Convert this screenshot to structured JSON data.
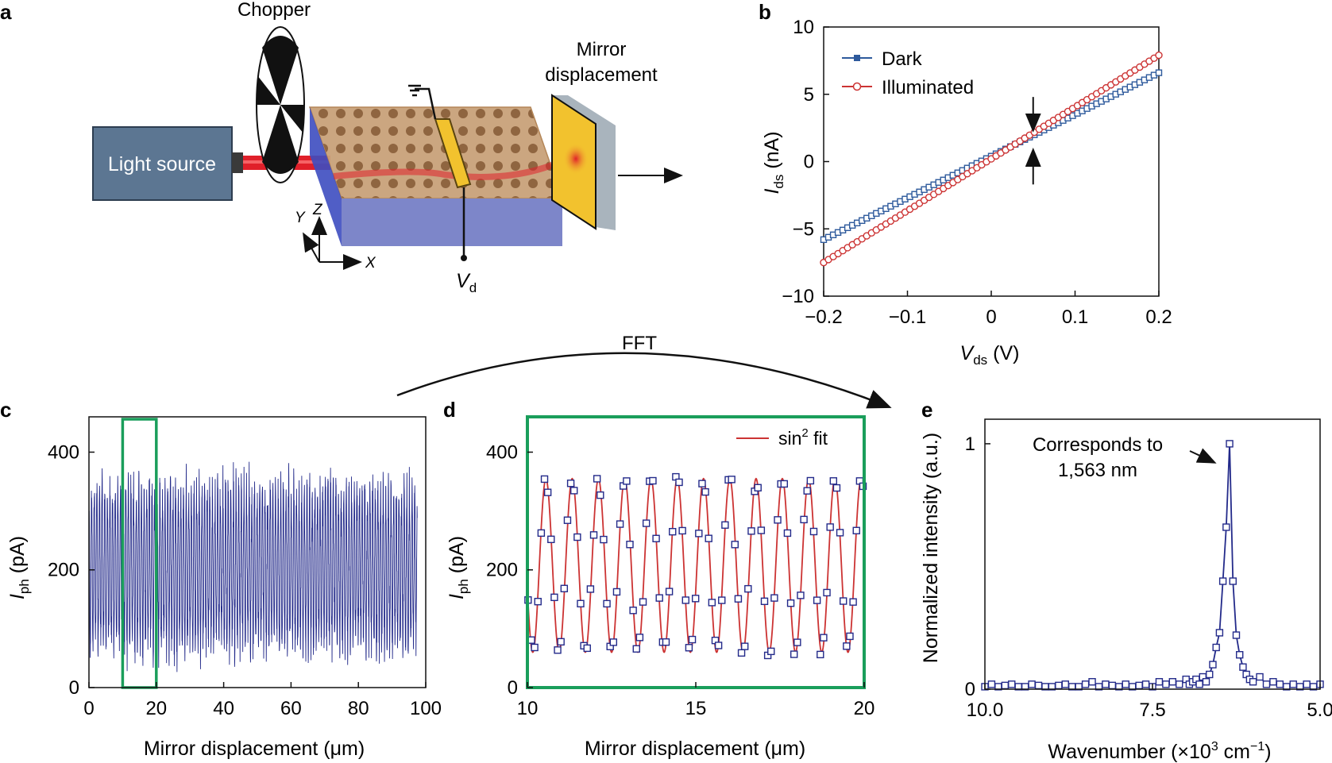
{
  "colors": {
    "dark": "#2e5a9c",
    "illuminated": "#cc3333",
    "trace": "#232a8a",
    "fit": "#cc3333",
    "green_box": "#1a9e5b",
    "light_source": "#5c7692",
    "substrate": "#7d86c9",
    "detector": "#f2c22e",
    "mirror": "#f2c22e"
  },
  "panels": {
    "a": {
      "label": "a",
      "chopper": "Chopper",
      "light_source": "Light source",
      "mirror_line1": "Mirror",
      "mirror_line2": "displacement",
      "axis_y": "Y",
      "axis_z": "Z",
      "axis_x": "X",
      "vd_main": "V",
      "vd_sub": "d"
    },
    "b": {
      "label": "b",
      "arrow_note": ""
    },
    "c": {
      "label": "c"
    },
    "d": {
      "label": "d",
      "fit_label_main": "sin",
      "fit_label_sup": "2",
      "fit_label_rest": " fit"
    },
    "e": {
      "label": "e",
      "annotation_line1": "Corresponds to",
      "annotation_line2": "1,563 nm"
    },
    "fft_label": "FFT"
  },
  "chart_data": [
    {
      "panel": "b",
      "type": "scatter",
      "xlabel_main": "V",
      "xlabel_sub": "ds",
      "xlabel_unit": " (V)",
      "ylabel_main": "I",
      "ylabel_sub": "ds",
      "ylabel_unit": " (nA)",
      "xlim": [
        -0.2,
        0.2
      ],
      "ylim": [
        -10,
        10
      ],
      "xticks": [
        -0.2,
        -0.1,
        0,
        0.1,
        0.2
      ],
      "xtick_labels": [
        "−0.2",
        "−0.1",
        "0",
        "0.1",
        "0.2"
      ],
      "yticks": [
        -10,
        -5,
        0,
        5,
        10
      ],
      "ytick_labels": [
        "−10",
        "−5",
        "0",
        "5",
        "10"
      ],
      "legend": "top-left",
      "series": [
        {
          "name": "Dark",
          "marker": "square",
          "x_range": [
            -0.2,
            0.2
          ],
          "y_at_xmin": -5.8,
          "y_at_xmax": 6.6
        },
        {
          "name": "Illuminated",
          "marker": "circle",
          "x_range": [
            -0.2,
            0.2
          ],
          "y_at_xmin": -7.5,
          "y_at_xmax": 7.9
        }
      ],
      "annotation_x": 0.05
    },
    {
      "panel": "c",
      "type": "line",
      "xlabel": "Mirror displacement (μm)",
      "ylabel_main": "I",
      "ylabel_sub": "ph",
      "ylabel_unit": " (pA)",
      "xlim": [
        0,
        100
      ],
      "ylim": [
        0,
        460
      ],
      "xticks": [
        0,
        20,
        40,
        60,
        80,
        100
      ],
      "xtick_labels": [
        "0",
        "20",
        "40",
        "60",
        "80",
        "100"
      ],
      "yticks": [
        0,
        200,
        400
      ],
      "ytick_labels": [
        "0",
        "200",
        "400"
      ],
      "x_range": [
        0,
        97.5
      ],
      "mean": 205,
      "amplitude": 140,
      "period": 0.78,
      "highlight_x": [
        10,
        20
      ]
    },
    {
      "panel": "d",
      "type": "scatter",
      "xlabel": "Mirror displacement (μm)",
      "ylabel_main": "I",
      "ylabel_sub": "ph",
      "ylabel_unit": " (pA)",
      "xlim": [
        10,
        20
      ],
      "ylim": [
        0,
        460
      ],
      "xticks": [
        10,
        15,
        20
      ],
      "xtick_labels": [
        "10",
        "15",
        "20"
      ],
      "yticks": [
        0,
        200,
        400
      ],
      "ytick_labels": [
        "0",
        "200",
        "400"
      ],
      "legend": "top-right",
      "fit": {
        "name": "sin² fit",
        "min": 60,
        "max": 355,
        "period": 0.78,
        "phase_x": 10.55
      }
    },
    {
      "panel": "e",
      "type": "line",
      "xlabel_main": "Wavenumber (×10",
      "xlabel_sup1": "3",
      "xlabel_mid": " cm",
      "xlabel_sup2": "−1",
      "xlabel_end": ")",
      "ylabel": "Normalized intensity (a.u.)",
      "xlim": [
        10.0,
        5.0
      ],
      "ylim": [
        0,
        1.1
      ],
      "xticks": [
        10.0,
        7.5,
        5.0
      ],
      "xtick_labels": [
        "10.0",
        "7.5",
        "5.0"
      ],
      "yticks": [
        0,
        1
      ],
      "ytick_labels": [
        "0",
        "1"
      ],
      "x": [
        10.0,
        9.9,
        9.8,
        9.7,
        9.6,
        9.5,
        9.4,
        9.3,
        9.2,
        9.1,
        9.0,
        8.9,
        8.8,
        8.7,
        8.6,
        8.5,
        8.4,
        8.3,
        8.2,
        8.1,
        8.0,
        7.9,
        7.8,
        7.7,
        7.6,
        7.5,
        7.4,
        7.3,
        7.2,
        7.1,
        7.0,
        6.95,
        6.9,
        6.85,
        6.8,
        6.75,
        6.7,
        6.65,
        6.6,
        6.55,
        6.5,
        6.45,
        6.4,
        6.35,
        6.3,
        6.25,
        6.2,
        6.15,
        6.1,
        6.05,
        6.0,
        5.9,
        5.8,
        5.7,
        5.6,
        5.5,
        5.4,
        5.3,
        5.2,
        5.1,
        5.0
      ],
      "y": [
        0.01,
        0.02,
        0.01,
        0.015,
        0.02,
        0.01,
        0.01,
        0.02,
        0.015,
        0.01,
        0.01,
        0.015,
        0.02,
        0.01,
        0.01,
        0.02,
        0.03,
        0.01,
        0.02,
        0.015,
        0.01,
        0.02,
        0.01,
        0.015,
        0.02,
        0.01,
        0.03,
        0.02,
        0.03,
        0.02,
        0.04,
        0.02,
        0.03,
        0.04,
        0.02,
        0.05,
        0.03,
        0.06,
        0.1,
        0.17,
        0.23,
        0.44,
        0.66,
        1.0,
        0.44,
        0.22,
        0.14,
        0.09,
        0.06,
        0.04,
        0.03,
        0.05,
        0.02,
        0.03,
        0.02,
        0.01,
        0.02,
        0.01,
        0.02,
        0.01,
        0.02
      ],
      "peak_x": 6.35
    }
  ]
}
